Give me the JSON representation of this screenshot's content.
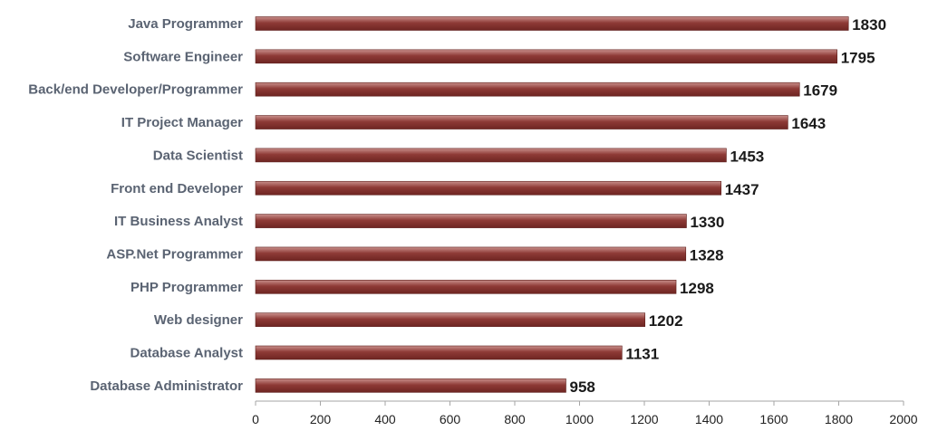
{
  "chart_data": {
    "type": "bar",
    "orientation": "horizontal",
    "categories": [
      "Java Programmer",
      "Software Engineer",
      "Back/end Developer/Programmer",
      "IT Project Manager",
      "Data Scientist",
      "Front end Developer",
      "IT Business Analyst",
      "ASP.Net Programmer",
      "PHP Programmer",
      "Web designer",
      "Database Analyst",
      "Database Administrator"
    ],
    "values": [
      1830,
      1795,
      1679,
      1643,
      1453,
      1437,
      1330,
      1328,
      1298,
      1202,
      1131,
      958
    ],
    "xlim": [
      0,
      2000
    ],
    "xticks": [
      0,
      200,
      400,
      600,
      800,
      1000,
      1200,
      1400,
      1600,
      1800,
      2000
    ],
    "title": "",
    "xlabel": "",
    "ylabel": "",
    "grid": false,
    "legend": "none",
    "colors": {
      "bar_top": "#c9908c",
      "bar_mid": "#8e3a36",
      "bar_bottom": "#6e2522",
      "axis": "#a6a6a6"
    }
  }
}
